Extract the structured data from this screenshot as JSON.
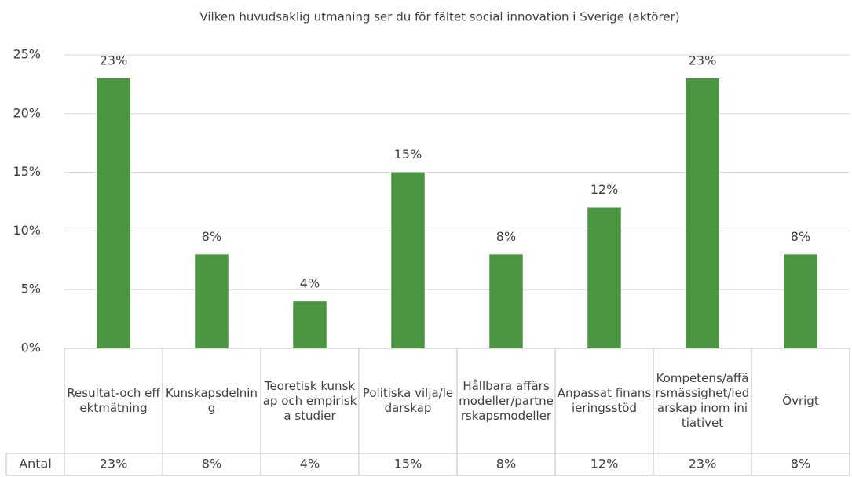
{
  "chart_data": {
    "type": "bar",
    "title": "Vilken huvudsaklig utmaning ser du för fältet social innovation i Sverige (aktörer)",
    "categories": [
      "Resultat-och effektmätning",
      "Kunskapsdelning",
      "Teoretisk kunskap och empiriska studier",
      "Politiska vilja/ledarskap",
      "Hållbara affärsmodeller/partnerskapsmodeller",
      "Anpassat finansieringsstöd",
      "Kompetens/affärsmässighet/ledarskap inom initiativet",
      "Övrigt"
    ],
    "values": [
      23,
      8,
      4,
      15,
      8,
      12,
      23,
      8
    ],
    "value_labels": [
      "23%",
      "8%",
      "4%",
      "15%",
      "8%",
      "12%",
      "23%",
      "8%"
    ],
    "table_row_label": "Antal",
    "color": "#4c9643",
    "ylim": [
      0,
      25
    ],
    "yticks": [
      {
        "value": 0,
        "label": "0%"
      },
      {
        "value": 5,
        "label": "5%"
      },
      {
        "value": 10,
        "label": "10%"
      },
      {
        "value": 15,
        "label": "15%"
      },
      {
        "value": 20,
        "label": "20%"
      },
      {
        "value": 25,
        "label": "25%"
      }
    ],
    "grid": true
  }
}
